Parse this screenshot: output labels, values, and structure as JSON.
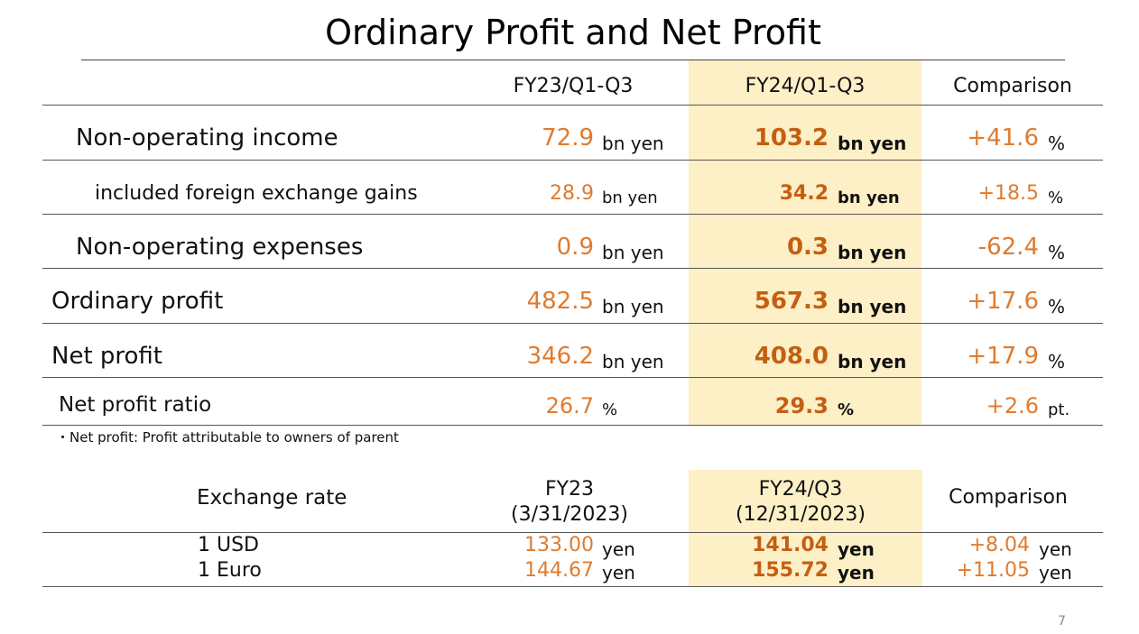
{
  "title": "Ordinary Profit and Net Profit",
  "profit_table": {
    "headers": [
      "FY23/Q1-Q3",
      "FY24/Q1-Q3",
      "Comparison"
    ],
    "rows": [
      {
        "label": "Non-operating income",
        "fy23": "72.9",
        "fy23_unit": "bn yen",
        "fy24": "103.2",
        "fy24_unit": "bn yen",
        "cmp": "+41.6",
        "cmp_unit": "%"
      },
      {
        "label": "included foreign exchange gains",
        "fy23": "28.9",
        "fy23_unit": "bn yen",
        "fy24": "34.2",
        "fy24_unit": "bn yen",
        "cmp": "+18.5",
        "cmp_unit": "%"
      },
      {
        "label": "Non-operating expenses",
        "fy23": "0.9",
        "fy23_unit": "bn yen",
        "fy24": "0.3",
        "fy24_unit": "bn yen",
        "cmp": "-62.4",
        "cmp_unit": "%"
      },
      {
        "label": "Ordinary profit",
        "fy23": "482.5",
        "fy23_unit": "bn yen",
        "fy24": "567.3",
        "fy24_unit": "bn yen",
        "cmp": "+17.6",
        "cmp_unit": "%"
      },
      {
        "label": "Net profit",
        "fy23": "346.2",
        "fy23_unit": "bn yen",
        "fy24": "408.0",
        "fy24_unit": "bn yen",
        "cmp": "+17.9",
        "cmp_unit": "%"
      },
      {
        "label": "Net profit ratio",
        "fy23": "26.7",
        "fy23_unit": "%",
        "fy24": "29.3",
        "fy24_unit": "%",
        "cmp": "+2.6",
        "cmp_unit": "pt."
      }
    ]
  },
  "footnote": "・Net profit: Profit attributable to owners of parent",
  "fx_table": {
    "label": "Exchange rate",
    "fy23_head": "FY23",
    "fy23_date": "(3/31/2023)",
    "fy24_head": "FY24/Q3",
    "fy24_date": "(12/31/2023)",
    "cmp_head": "Comparison",
    "rows": [
      {
        "label": "1 USD",
        "fy23": "133.00",
        "fy23_unit": "yen",
        "fy24": "141.04",
        "fy24_unit": "yen",
        "cmp": "+8.04",
        "cmp_unit": "yen"
      },
      {
        "label": "1 Euro",
        "fy23": "144.67",
        "fy23_unit": "yen",
        "fy24": "155.72",
        "fy24_unit": "yen",
        "cmp": "+11.05",
        "cmp_unit": "yen"
      }
    ]
  },
  "page_number": "7",
  "colors": {
    "highlight": "#fdefc6",
    "fy23_value": "#e07b2e",
    "fy24_value": "#c45f12"
  }
}
